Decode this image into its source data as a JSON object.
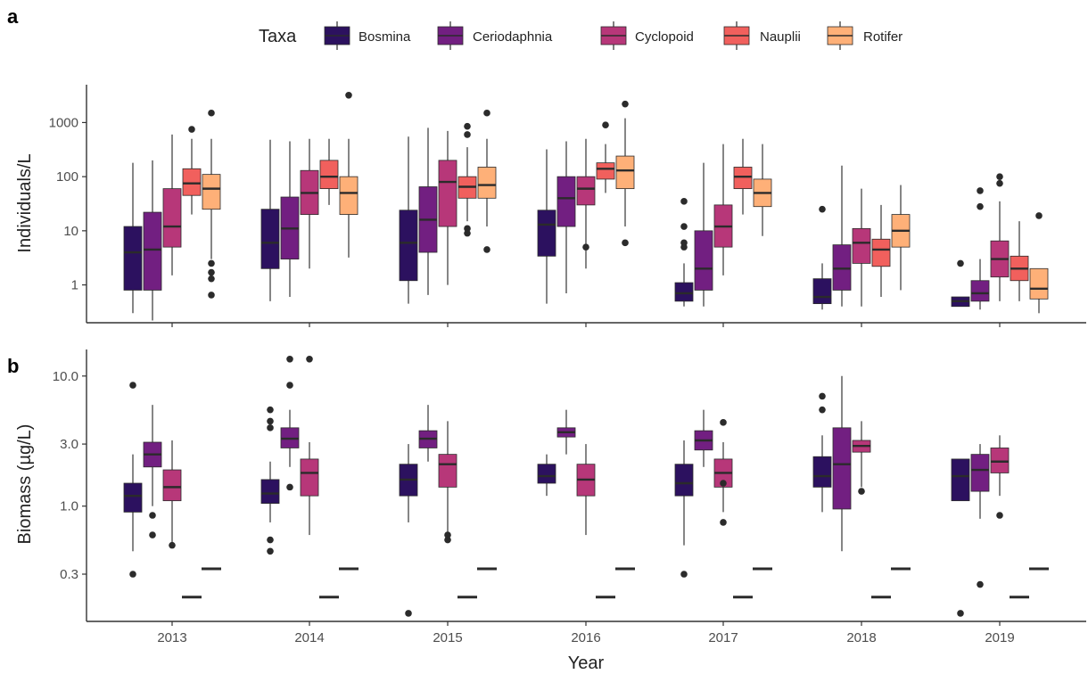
{
  "panel_a_letter": "a",
  "panel_b_letter": "b",
  "legend": {
    "title": "Taxa",
    "items": [
      {
        "label": "Bosmina",
        "color": "#2c115f"
      },
      {
        "label": "Ceriodaphnia",
        "color": "#721f81"
      },
      {
        "label": "Cyclopoid",
        "color": "#b73779"
      },
      {
        "label": "Nauplii",
        "color": "#f1605d"
      },
      {
        "label": "Rotifer",
        "color": "#feb078"
      }
    ]
  },
  "chart_data": [
    {
      "type": "box",
      "panel": "a",
      "ylabel": "Individuals/L",
      "xlabel": "",
      "yscale": "log",
      "ylim": [
        0.2,
        5000
      ],
      "yticks": [
        1,
        10,
        100,
        1000
      ],
      "ytick_labels": [
        "1",
        "10",
        "100",
        "1000"
      ],
      "categories": [
        "2013",
        "2014",
        "2015",
        "2016",
        "2017",
        "2018",
        "2019"
      ],
      "series": [
        {
          "name": "Bosmina",
          "color": "#2c115f",
          "boxes": [
            {
              "min": 0.3,
              "q1": 0.8,
              "median": 4,
              "q3": 12,
              "max": 180,
              "outliers": []
            },
            {
              "min": 0.5,
              "q1": 2,
              "median": 6,
              "q3": 25,
              "max": 480,
              "outliers": []
            },
            {
              "min": 0.45,
              "q1": 1.2,
              "median": 6,
              "q3": 24,
              "max": 550,
              "outliers": []
            },
            {
              "min": 0.45,
              "q1": 3.4,
              "median": 13,
              "q3": 24,
              "max": 320,
              "outliers": []
            },
            {
              "min": 0.4,
              "q1": 0.5,
              "median": 0.7,
              "q3": 1.1,
              "max": 2.5,
              "outliers": [
                5,
                6,
                12,
                35
              ]
            },
            {
              "min": 0.35,
              "q1": 0.45,
              "median": 0.6,
              "q3": 1.3,
              "max": 2.5,
              "outliers": [
                25
              ]
            },
            {
              "min": 0.4,
              "q1": 0.4,
              "median": 0.5,
              "q3": 0.6,
              "max": 0.6,
              "outliers": [
                2.5
              ]
            }
          ]
        },
        {
          "name": "Ceriodaphnia",
          "color": "#721f81",
          "boxes": [
            {
              "min": 0.22,
              "q1": 0.8,
              "median": 4.5,
              "q3": 22,
              "max": 200,
              "outliers": []
            },
            {
              "min": 0.6,
              "q1": 3,
              "median": 11,
              "q3": 42,
              "max": 450,
              "outliers": []
            },
            {
              "min": 0.65,
              "q1": 4,
              "median": 16,
              "q3": 65,
              "max": 800,
              "outliers": []
            },
            {
              "min": 0.7,
              "q1": 12,
              "median": 40,
              "q3": 100,
              "max": 450,
              "outliers": []
            },
            {
              "min": 0.4,
              "q1": 0.8,
              "median": 2,
              "q3": 10,
              "max": 180,
              "outliers": []
            },
            {
              "min": 0.4,
              "q1": 0.8,
              "median": 2,
              "q3": 5.5,
              "max": 160,
              "outliers": []
            },
            {
              "min": 0.35,
              "q1": 0.5,
              "median": 0.7,
              "q3": 1.2,
              "max": 3,
              "outliers": [
                28,
                55
              ]
            }
          ]
        },
        {
          "name": "Cyclopoid",
          "color": "#b73779",
          "boxes": [
            {
              "min": 1.5,
              "q1": 5,
              "median": 12,
              "q3": 60,
              "max": 600,
              "outliers": []
            },
            {
              "min": 2,
              "q1": 20,
              "median": 50,
              "q3": 130,
              "max": 500,
              "outliers": []
            },
            {
              "min": 1,
              "q1": 12,
              "median": 80,
              "q3": 200,
              "max": 700,
              "outliers": []
            },
            {
              "min": 2,
              "q1": 30,
              "median": 60,
              "q3": 100,
              "max": 500,
              "outliers": [
                5
              ]
            },
            {
              "min": 1.5,
              "q1": 5,
              "median": 12,
              "q3": 30,
              "max": 400,
              "outliers": []
            },
            {
              "min": 0.4,
              "q1": 2.5,
              "median": 6,
              "q3": 11,
              "max": 60,
              "outliers": []
            },
            {
              "min": 0.5,
              "q1": 1.4,
              "median": 3,
              "q3": 6.5,
              "max": 35,
              "outliers": [
                75,
                100
              ]
            }
          ]
        },
        {
          "name": "Nauplii",
          "color": "#f1605d",
          "boxes": [
            {
              "min": 20,
              "q1": 45,
              "median": 75,
              "q3": 140,
              "max": 500,
              "outliers": [
                750
              ]
            },
            {
              "min": 30,
              "q1": 60,
              "median": 100,
              "q3": 200,
              "max": 500,
              "outliers": []
            },
            {
              "min": 15,
              "q1": 40,
              "median": 65,
              "q3": 100,
              "max": 350,
              "outliers": [
                9,
                11,
                600,
                850
              ]
            },
            {
              "min": 50,
              "q1": 90,
              "median": 140,
              "q3": 180,
              "max": 400,
              "outliers": [
                900
              ]
            },
            {
              "min": 20,
              "q1": 60,
              "median": 100,
              "q3": 150,
              "max": 500,
              "outliers": []
            },
            {
              "min": 0.6,
              "q1": 2.2,
              "median": 4.5,
              "q3": 7,
              "max": 30,
              "outliers": []
            },
            {
              "min": 0.5,
              "q1": 1.2,
              "median": 2,
              "q3": 3.4,
              "max": 15,
              "outliers": []
            }
          ]
        },
        {
          "name": "Rotifer",
          "color": "#feb078",
          "boxes": [
            {
              "min": 3,
              "q1": 25,
              "median": 60,
              "q3": 110,
              "max": 500,
              "outliers": [
                0.65,
                1.3,
                1.7,
                2.5,
                1500
              ]
            },
            {
              "min": 3.2,
              "q1": 20,
              "median": 50,
              "q3": 100,
              "max": 500,
              "outliers": [
                3200
              ]
            },
            {
              "min": 12,
              "q1": 40,
              "median": 70,
              "q3": 150,
              "max": 500,
              "outliers": [
                4.5,
                1500
              ]
            },
            {
              "min": 12,
              "q1": 60,
              "median": 130,
              "q3": 240,
              "max": 1200,
              "outliers": [
                6,
                2200
              ]
            },
            {
              "min": 8,
              "q1": 28,
              "median": 50,
              "q3": 90,
              "max": 400,
              "outliers": []
            },
            {
              "min": 0.8,
              "q1": 5,
              "median": 10,
              "q3": 20,
              "max": 70,
              "outliers": []
            },
            {
              "min": 0.3,
              "q1": 0.55,
              "median": 0.85,
              "q3": 2,
              "max": 2,
              "outliers": [
                19
              ]
            }
          ]
        }
      ]
    },
    {
      "type": "box",
      "panel": "b",
      "ylabel": "Biomass (µg/L)",
      "xlabel": "Year",
      "yscale": "log",
      "ylim": [
        0.13,
        16
      ],
      "yticks": [
        0.3,
        1.0,
        3.0,
        10.0
      ],
      "ytick_labels": [
        "0.3",
        "1.0",
        "3.0",
        "10.0"
      ],
      "categories": [
        "2013",
        "2014",
        "2015",
        "2016",
        "2017",
        "2018",
        "2019"
      ],
      "series": [
        {
          "name": "Bosmina",
          "color": "#2c115f",
          "boxes": [
            {
              "min": 0.45,
              "q1": 0.9,
              "median": 1.2,
              "q3": 1.5,
              "max": 2.5,
              "outliers": [
                0.3,
                8.5
              ]
            },
            {
              "min": 0.75,
              "q1": 1.05,
              "median": 1.25,
              "q3": 1.6,
              "max": 2.2,
              "outliers": [
                0.45,
                0.55,
                4,
                4.5,
                5.5
              ]
            },
            {
              "min": 0.75,
              "q1": 1.2,
              "median": 1.6,
              "q3": 2.1,
              "max": 3,
              "outliers": [
                0.15
              ]
            },
            {
              "min": 1.2,
              "q1": 1.5,
              "median": 1.7,
              "q3": 2.1,
              "max": 2.5,
              "outliers": []
            },
            {
              "min": 0.5,
              "q1": 1.2,
              "median": 1.5,
              "q3": 2.1,
              "max": 3.2,
              "outliers": [
                0.3
              ]
            },
            {
              "min": 0.9,
              "q1": 1.4,
              "median": 1.7,
              "q3": 2.4,
              "max": 3.5,
              "outliers": [
                5.5,
                7
              ]
            },
            {
              "min": 1.1,
              "q1": 1.1,
              "median": 1.7,
              "q3": 2.3,
              "max": 2.3,
              "outliers": [
                0.15
              ]
            }
          ]
        },
        {
          "name": "Ceriodaphnia",
          "color": "#721f81",
          "boxes": [
            {
              "min": 1,
              "q1": 2,
              "median": 2.5,
              "q3": 3.1,
              "max": 6,
              "outliers": [
                0.6,
                0.85
              ]
            },
            {
              "min": 2,
              "q1": 2.8,
              "median": 3.3,
              "q3": 4,
              "max": 5.5,
              "outliers": [
                1.4,
                8.5,
                13.5
              ]
            },
            {
              "min": 2.2,
              "q1": 2.8,
              "median": 3.3,
              "q3": 3.8,
              "max": 6,
              "outliers": []
            },
            {
              "min": 2.5,
              "q1": 3.4,
              "median": 3.7,
              "q3": 4,
              "max": 5.5,
              "outliers": []
            },
            {
              "min": 2,
              "q1": 2.7,
              "median": 3.2,
              "q3": 3.8,
              "max": 5.5,
              "outliers": []
            },
            {
              "min": 0.45,
              "q1": 0.95,
              "median": 2.1,
              "q3": 4,
              "max": 10,
              "outliers": []
            },
            {
              "min": 0.8,
              "q1": 1.3,
              "median": 1.9,
              "q3": 2.5,
              "max": 3,
              "outliers": [
                0.25
              ]
            }
          ]
        },
        {
          "name": "Cyclopoid",
          "color": "#b73779",
          "boxes": [
            {
              "min": 0.5,
              "q1": 1.1,
              "median": 1.4,
              "q3": 1.9,
              "max": 3.2,
              "outliers": [
                0.5
              ]
            },
            {
              "min": 0.6,
              "q1": 1.2,
              "median": 1.8,
              "q3": 2.3,
              "max": 3.1,
              "outliers": [
                13.5
              ]
            },
            {
              "min": 0.6,
              "q1": 1.4,
              "median": 2.1,
              "q3": 2.5,
              "max": 4.5,
              "outliers": [
                0.55,
                0.6
              ]
            },
            {
              "min": 0.6,
              "q1": 1.2,
              "median": 1.6,
              "q3": 2.1,
              "max": 3,
              "outliers": []
            },
            {
              "min": 0.9,
              "q1": 1.4,
              "median": 1.8,
              "q3": 2.3,
              "max": 3.1,
              "outliers": [
                0.75,
                1.5,
                4.4
              ]
            },
            {
              "min": 1.4,
              "q1": 2.6,
              "median": 2.9,
              "q3": 3.2,
              "max": 4.5,
              "outliers": [
                1.3
              ]
            },
            {
              "min": 1.2,
              "q1": 1.8,
              "median": 2.2,
              "q3": 2.8,
              "max": 3.5,
              "outliers": [
                0.85
              ]
            }
          ]
        },
        {
          "name": "Nauplii",
          "color": "#f1605d",
          "boxes": [
            {
              "flat": 0.2
            },
            {
              "flat": 0.2
            },
            {
              "flat": 0.2
            },
            {
              "flat": 0.2
            },
            {
              "flat": 0.2
            },
            {
              "flat": 0.2
            },
            {
              "flat": 0.2
            }
          ]
        },
        {
          "name": "Rotifer",
          "color": "#feb078",
          "boxes": [
            {
              "flat": 0.33
            },
            {
              "flat": 0.33
            },
            {
              "flat": 0.33
            },
            {
              "flat": 0.33
            },
            {
              "flat": 0.33
            },
            {
              "flat": 0.33
            },
            {
              "flat": 0.33
            }
          ]
        }
      ]
    }
  ]
}
